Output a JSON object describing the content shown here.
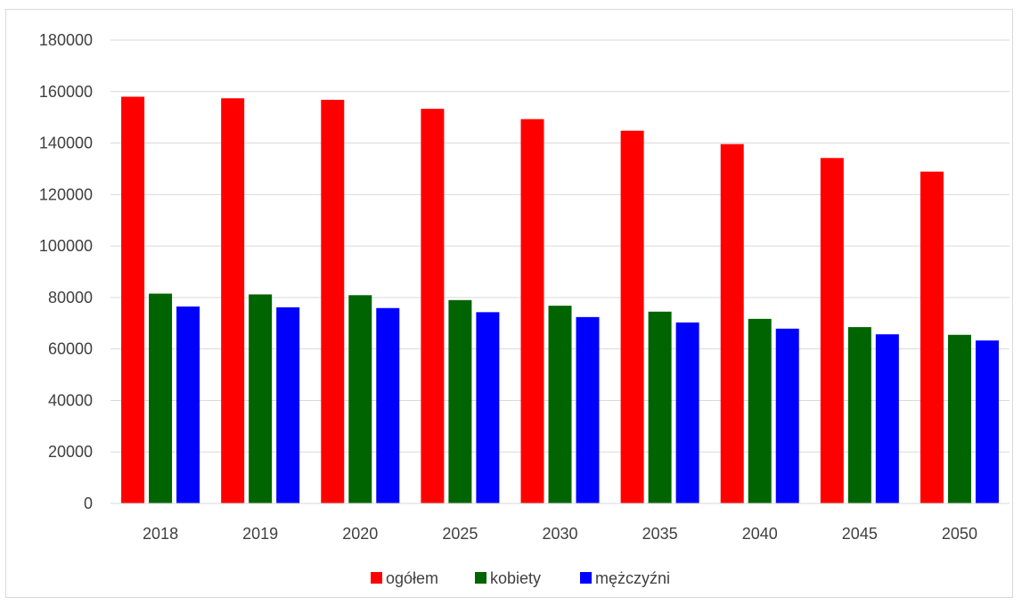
{
  "chart_data": {
    "type": "bar",
    "categories": [
      "2018",
      "2019",
      "2020",
      "2025",
      "2030",
      "2035",
      "2040",
      "2045",
      "2050"
    ],
    "series": [
      {
        "name": "ogółem",
        "color": "#ff0000",
        "values": [
          158000,
          157400,
          156800,
          153300,
          149300,
          144800,
          139600,
          134200,
          128900
        ]
      },
      {
        "name": "kobiety",
        "color": "#006400",
        "values": [
          81500,
          81200,
          80900,
          79000,
          76800,
          74500,
          71700,
          68500,
          65500
        ]
      },
      {
        "name": "mężczyźni",
        "color": "#0000ff",
        "values": [
          76500,
          76200,
          75900,
          74300,
          72400,
          70300,
          67900,
          65700,
          63300
        ]
      }
    ],
    "ylim": [
      0,
      180000
    ],
    "yticks": [
      0,
      20000,
      40000,
      60000,
      80000,
      100000,
      120000,
      140000,
      160000,
      180000
    ],
    "grid": true,
    "legend_position": "bottom",
    "title": "",
    "xlabel": "",
    "ylabel": ""
  }
}
